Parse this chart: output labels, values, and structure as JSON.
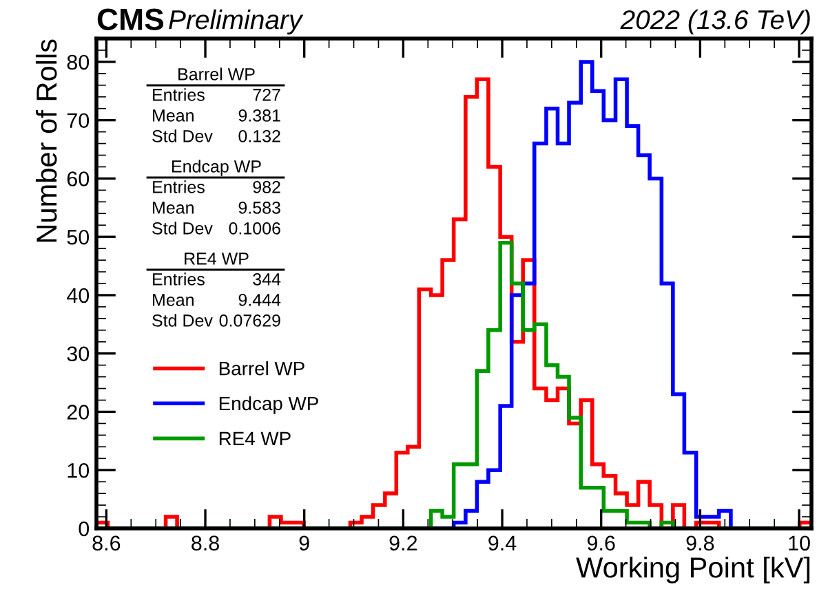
{
  "chart_data": {
    "type": "histogram",
    "title": "CMS",
    "xlabel": "Working Point [kV]",
    "ylabel": "Number of Rolls",
    "annotations": [
      "Preliminary",
      "2022 (13.6 TeV)",
      "Barrel WP",
      "Entries",
      "727",
      "Mean",
      "9.381",
      "Std Dev",
      "0.132",
      "Endcap WP",
      "Entries",
      "982",
      "Mean",
      "9.583",
      "Std Dev",
      "0.1006",
      "RE4 WP",
      "Entries",
      "344",
      "Mean",
      "9.444",
      "Std Dev",
      "0.07629"
    ],
    "bins": [
      8.58,
      8.603,
      8.627,
      8.65,
      8.673,
      8.697,
      8.72,
      8.743,
      8.766,
      8.79,
      8.813,
      8.836,
      8.86,
      8.883,
      8.906,
      8.93,
      8.953,
      8.976,
      8.999,
      9.023,
      9.046,
      9.069,
      9.093,
      9.116,
      9.139,
      9.163,
      9.186,
      9.209,
      9.232,
      9.256,
      9.279,
      9.302,
      9.326,
      9.349,
      9.372,
      9.396,
      9.419,
      9.442,
      9.465,
      9.489,
      9.512,
      9.535,
      9.559,
      9.582,
      9.605,
      9.629,
      9.652,
      9.675,
      9.698,
      9.722,
      9.745,
      9.768,
      9.792,
      9.815,
      9.838,
      9.862,
      9.885,
      9.908,
      9.931,
      9.955,
      9.978,
      10.001,
      10.025
    ],
    "series": [
      {
        "name": "Barrel WP",
        "color": "#ff0000",
        "values": [
          1,
          0,
          0,
          0,
          0,
          0,
          2,
          0,
          0,
          0,
          0,
          0,
          0,
          0,
          0,
          2,
          1,
          1,
          0,
          0,
          0,
          0,
          1,
          2,
          4,
          6,
          13,
          14,
          41,
          40,
          46,
          53,
          74,
          77,
          62,
          50,
          32,
          46,
          24,
          22,
          24,
          18,
          22,
          11,
          9,
          6,
          4,
          8,
          4,
          0,
          4,
          0,
          1,
          1,
          0,
          0,
          0,
          0,
          0,
          0,
          0,
          1
        ]
      },
      {
        "name": "Endcap WP",
        "color": "#0000ff",
        "values": [
          0,
          0,
          0,
          0,
          0,
          0,
          0,
          0,
          0,
          0,
          0,
          0,
          0,
          0,
          0,
          0,
          0,
          0,
          0,
          0,
          0,
          0,
          0,
          0,
          0,
          0,
          0,
          0,
          0,
          0,
          0,
          1,
          3,
          8,
          10,
          21,
          40,
          42,
          66,
          72,
          66,
          73,
          80,
          75,
          70,
          77,
          69,
          64,
          60,
          42,
          23,
          13,
          2,
          2,
          3,
          0,
          0,
          0,
          0,
          0,
          0,
          0
        ]
      },
      {
        "name": "RE4 WP",
        "color": "#009a00",
        "values": [
          0,
          0,
          0,
          0,
          0,
          0,
          0,
          0,
          0,
          0,
          0,
          0,
          0,
          0,
          0,
          0,
          0,
          0,
          0,
          0,
          0,
          0,
          0,
          0,
          0,
          0,
          0,
          0,
          0,
          3,
          2,
          11,
          11,
          27,
          34,
          49,
          42,
          34,
          35,
          28,
          26,
          19,
          7,
          7,
          3,
          3,
          1,
          1,
          0,
          1,
          0,
          0,
          0,
          0,
          0,
          0,
          0,
          0,
          0,
          0,
          0,
          0
        ]
      }
    ],
    "xlim": [
      8.58,
      10.025
    ],
    "xticks": [
      8.6,
      8.8,
      9,
      9.2,
      9.4,
      9.6,
      9.8,
      10
    ],
    "ylim": [
      0,
      84
    ],
    "yticks": [
      0,
      10,
      20,
      30,
      40,
      50,
      60,
      70,
      80
    ],
    "grid": false,
    "legend": "left"
  }
}
